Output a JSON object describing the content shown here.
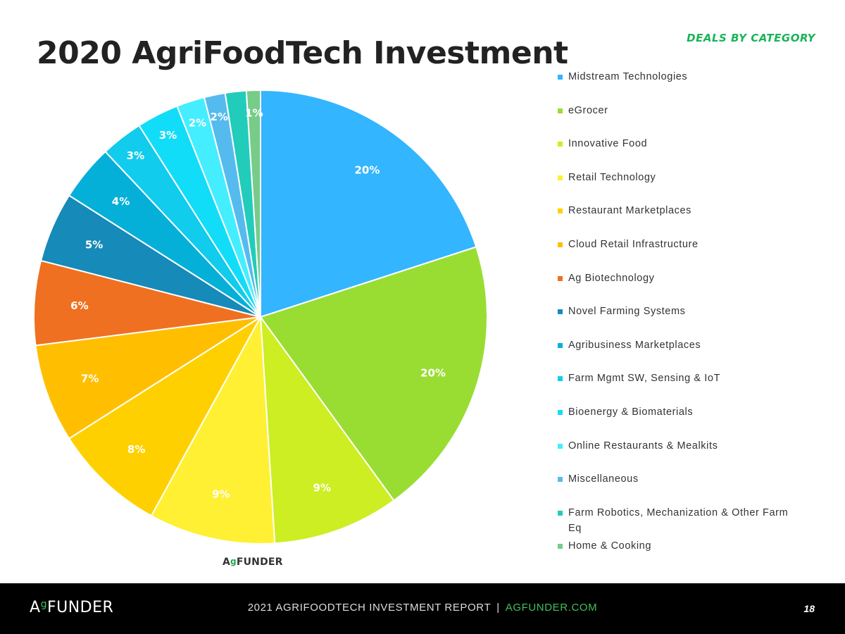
{
  "header": {
    "title": "2020 AgriFoodTech Investment",
    "subtitle": "DEALS BY CATEGORY"
  },
  "chart_data": {
    "type": "pie",
    "title": "2020 AgriFoodTech Investment",
    "subtitle": "DEALS BY CATEGORY",
    "legend_position": "right",
    "start_angle": "12 o'clock, clockwise",
    "slices": [
      {
        "label": "Midstream Technologies",
        "value": 20,
        "display": "20%",
        "color": "#33b5ff"
      },
      {
        "label": "eGrocer",
        "value": 20,
        "display": "20%",
        "color": "#99dd33"
      },
      {
        "label": "Innovative Food",
        "value": 9,
        "display": "9%",
        "color": "#ccee22"
      },
      {
        "label": "Retail Technology",
        "value": 9,
        "display": "9%",
        "color": "#fff033"
      },
      {
        "label": "Restaurant Marketplaces",
        "value": 8,
        "display": "8%",
        "color": "#ffd000"
      },
      {
        "label": "Cloud Retail Infrastructure",
        "value": 7,
        "display": "7%",
        "color": "#ffbf00"
      },
      {
        "label": "Ag Biotechnology",
        "value": 6,
        "display": "6%",
        "color": "#ef7020"
      },
      {
        "label": "Novel Farming Systems",
        "value": 5,
        "display": "5%",
        "color": "#168ab8"
      },
      {
        "label": "Agribusiness Marketplaces",
        "value": 4,
        "display": "4%",
        "color": "#05b0d8"
      },
      {
        "label": "Farm Mgmt SW, Sensing & IoT",
        "value": 3,
        "display": "3%",
        "color": "#11ccec"
      },
      {
        "label": "Bioenergy & Biomaterials",
        "value": 3,
        "display": "3%",
        "color": "#11ddf8"
      },
      {
        "label": "Online Restaurants & Mealkits",
        "value": 2,
        "display": "2%",
        "color": "#44eeff"
      },
      {
        "label": "Miscellaneous",
        "value": 1.5,
        "display": "2%",
        "color": "#55bbee"
      },
      {
        "label": "Farm Robotics, Mechanization & Other Farm Eq",
        "value": 1.5,
        "display": "",
        "color": "#22ccbb"
      },
      {
        "label": "Home & Cooking",
        "value": 1,
        "display": "1%",
        "color": "#77cc88"
      }
    ]
  },
  "watermark": {
    "logo_prefix": "A",
    "logo_leaf": "g",
    "logo_text": "FUNDER"
  },
  "footer": {
    "logo_prefix": "A",
    "logo_leaf": "g",
    "logo_text": "FUNDER",
    "report": "2021 AGRIFOODTECH INVESTMENT REPORT",
    "separator": "|",
    "site": "AGFUNDER.COM",
    "page": "18"
  }
}
